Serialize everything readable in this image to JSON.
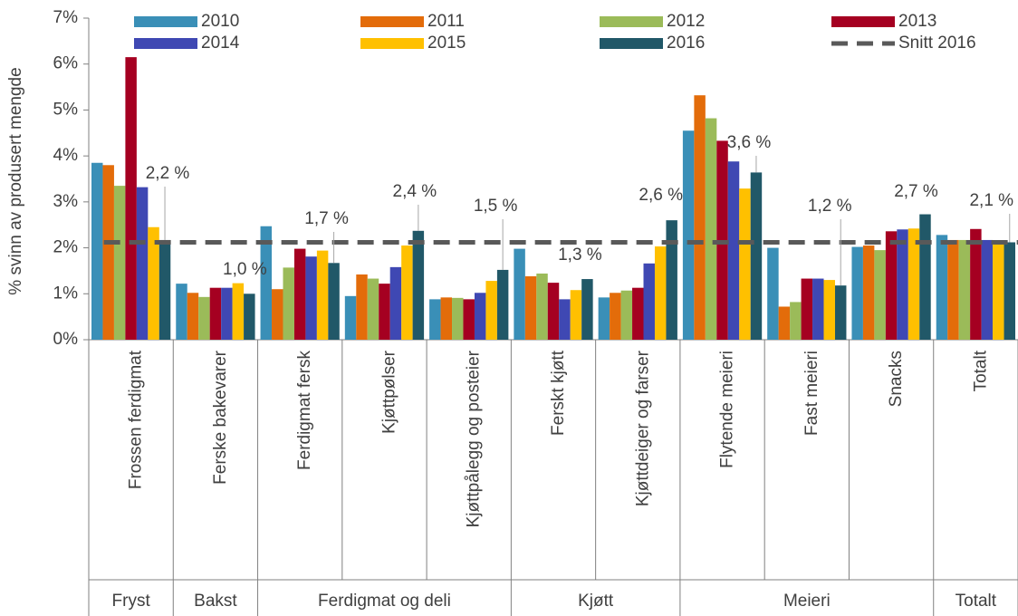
{
  "chart_data": {
    "type": "bar",
    "ylabel": "% svinn av produsert mengde",
    "categories": [
      "Frossen ferdigmat",
      "Ferske bakevarer",
      "Ferdigmat fersk",
      "Kjøttpølser",
      "Kjøttpålegg og posteier",
      "Ferskt kjøtt",
      "Kjøttdeiger og farser",
      "Flytende meieri",
      "Fast meieri",
      "Snacks",
      "Totalt"
    ],
    "groups": [
      "Fryst",
      "Bakst",
      "Ferdigmat og deli",
      "Kjøtt",
      "Meieri",
      "Totalt"
    ],
    "series": [
      {
        "name": "2010",
        "color": "#3a8fb7",
        "values": [
          3.85,
          1.22,
          2.47,
          0.95,
          0.88,
          1.98,
          0.92,
          4.55,
          2.0,
          2.02,
          2.28
        ]
      },
      {
        "name": "2011",
        "color": "#e36c0a",
        "values": [
          3.8,
          1.02,
          1.1,
          1.42,
          0.92,
          1.38,
          1.02,
          5.32,
          0.72,
          2.05,
          2.17
        ]
      },
      {
        "name": "2012",
        "color": "#9bbb59",
        "values": [
          3.35,
          0.93,
          1.57,
          1.33,
          0.91,
          1.44,
          1.07,
          4.82,
          0.82,
          1.95,
          2.17
        ]
      },
      {
        "name": "2013",
        "color": "#a50021",
        "values": [
          6.15,
          1.13,
          1.98,
          1.22,
          0.88,
          1.24,
          1.13,
          4.33,
          1.33,
          2.36,
          2.41
        ]
      },
      {
        "name": "2014",
        "color": "#3f48b3",
        "values": [
          3.32,
          1.13,
          1.81,
          1.58,
          1.02,
          0.88,
          1.66,
          3.88,
          1.33,
          2.4,
          2.17
        ]
      },
      {
        "name": "2015",
        "color": "#ffc000",
        "values": [
          2.45,
          1.23,
          1.94,
          2.05,
          1.28,
          1.08,
          2.03,
          3.29,
          1.3,
          2.42,
          2.14
        ]
      },
      {
        "name": "2016",
        "color": "#215868",
        "values": [
          2.17,
          1.0,
          1.67,
          2.37,
          1.52,
          1.32,
          2.6,
          3.64,
          1.18,
          2.73,
          2.12
        ],
        "value_labels": [
          "2,2 %",
          "1,0 %",
          "1,7 %",
          "2,4 %",
          "1,5 %",
          "1,3 %",
          "2,6 %",
          "3,6 %",
          "1,2 %",
          "2,7 %",
          "2,1 %"
        ]
      }
    ],
    "average": {
      "name": "Snitt 2016",
      "value": 2.12,
      "color": "#595959"
    },
    "ylim": [
      0,
      7
    ],
    "yticks": [
      {
        "value": 0,
        "label": "0%"
      },
      {
        "value": 1,
        "label": "1%"
      },
      {
        "value": 2,
        "label": "2%"
      },
      {
        "value": 3,
        "label": "3%"
      },
      {
        "value": 4,
        "label": "4%"
      },
      {
        "value": 5,
        "label": "5%"
      },
      {
        "value": 6,
        "label": "6%"
      },
      {
        "value": 7,
        "label": "7%"
      }
    ],
    "grid": false
  }
}
